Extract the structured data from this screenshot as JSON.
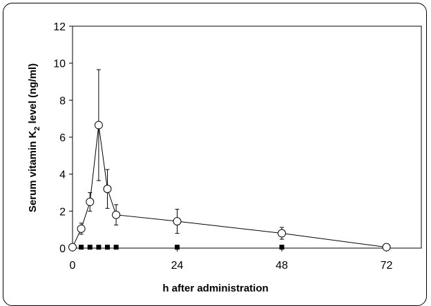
{
  "chart_data": {
    "type": "line",
    "title": "",
    "xlabel": "h after administration",
    "ylabel": {
      "prefix": "Serum vitamin K",
      "subscript": "2",
      "suffix": " level   (ng/ml)"
    },
    "xlim": [
      0,
      80
    ],
    "ylim": [
      0,
      12
    ],
    "x_ticks": [
      0,
      24,
      48,
      72
    ],
    "y_ticks": [
      0,
      2,
      4,
      6,
      8,
      10,
      12
    ],
    "grid": false,
    "legend": "none",
    "series": [
      {
        "marker": "open-circle",
        "color": "#000000",
        "points": [
          {
            "x": 0,
            "y": 0.05,
            "err": 0
          },
          {
            "x": 2,
            "y": 1.05,
            "err": 0.3
          },
          {
            "x": 4,
            "y": 2.5,
            "err": 0.5
          },
          {
            "x": 6,
            "y": 6.65,
            "err": 3.0
          },
          {
            "x": 8,
            "y": 3.2,
            "err": 1.05
          },
          {
            "x": 10,
            "y": 1.8,
            "err": 0.55
          },
          {
            "x": 24,
            "y": 1.45,
            "err": 0.65
          },
          {
            "x": 48,
            "y": 0.8,
            "err": 0.32
          },
          {
            "x": 72,
            "y": 0.05,
            "err": 0
          }
        ]
      },
      {
        "marker": "filled-square",
        "color": "#000000",
        "points": [
          {
            "x": 2,
            "y": 0.05
          },
          {
            "x": 4,
            "y": 0.05
          },
          {
            "x": 6,
            "y": 0.05
          },
          {
            "x": 8,
            "y": 0.05
          },
          {
            "x": 10,
            "y": 0.05
          },
          {
            "x": 24,
            "y": 0.05
          },
          {
            "x": 48,
            "y": 0.05
          }
        ]
      }
    ]
  }
}
